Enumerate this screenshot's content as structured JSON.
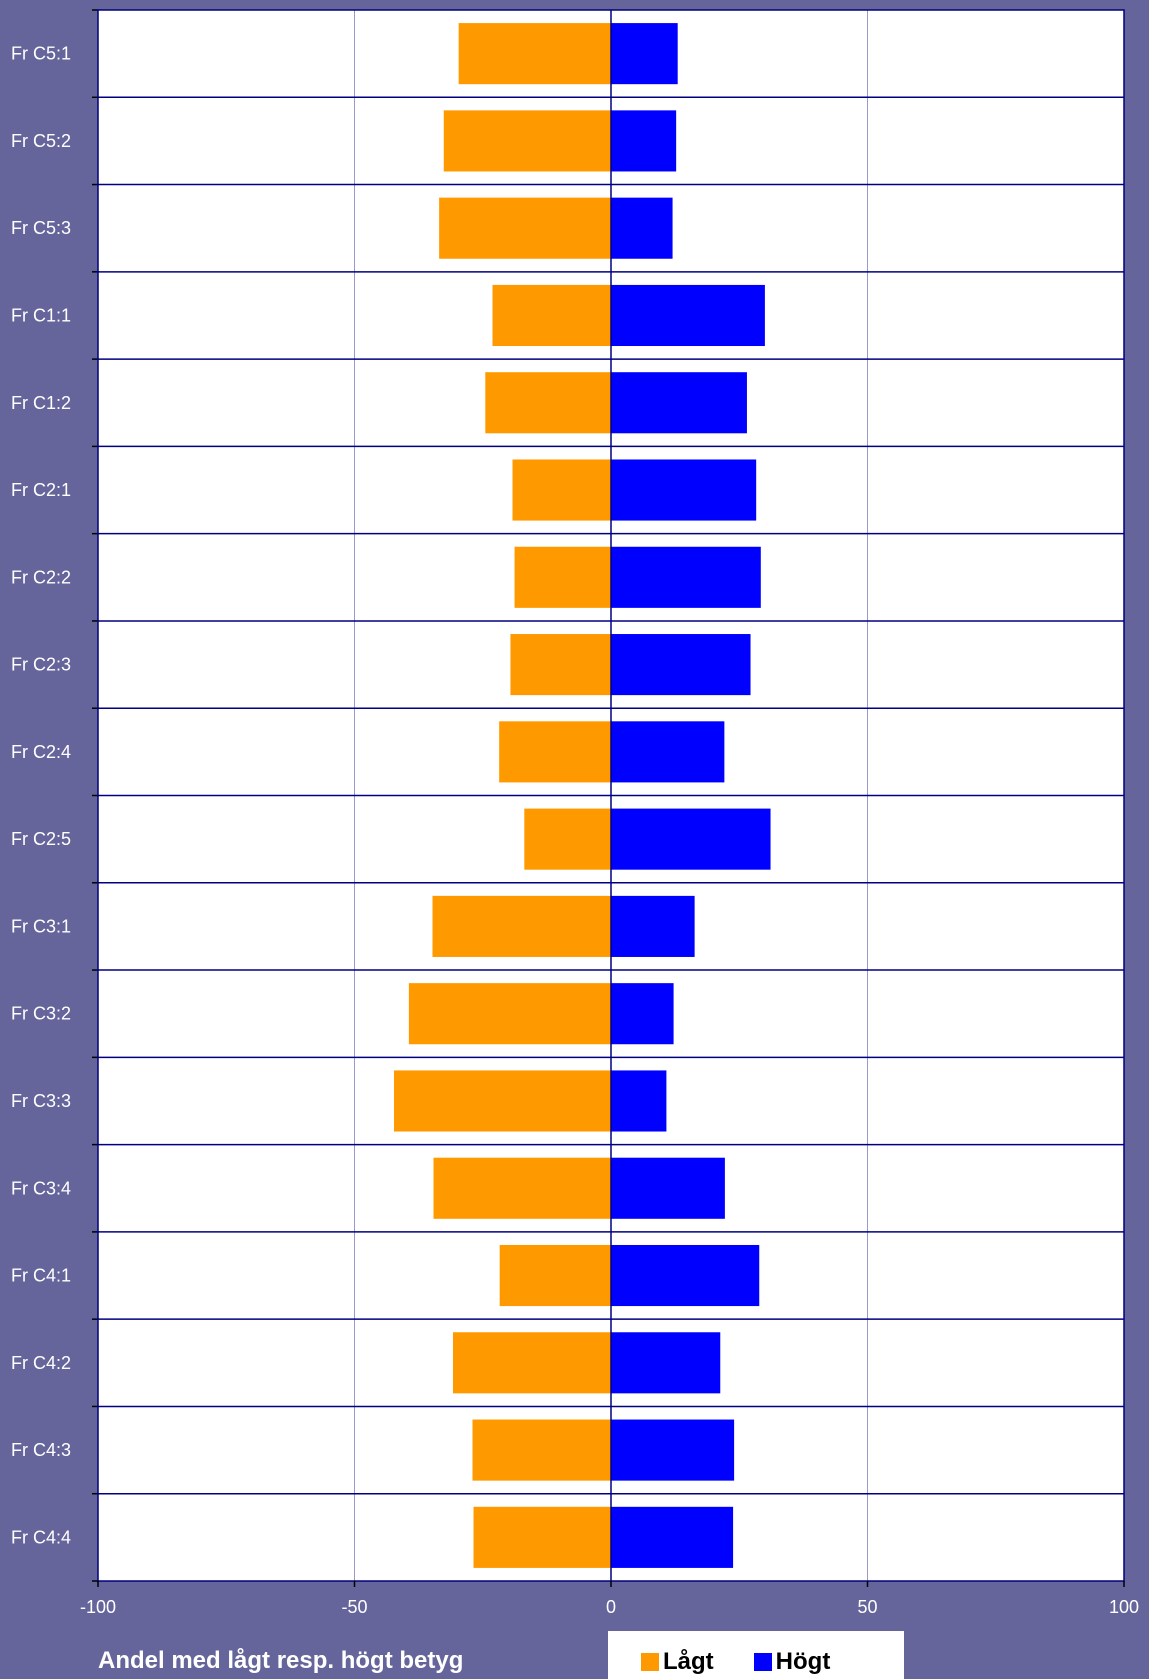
{
  "chart_data": {
    "type": "bar",
    "orientation": "horizontal",
    "stacked_diverging": true,
    "categories": [
      "Fr C5:1",
      "Fr C5:2",
      "Fr C5:3",
      "Fr C1:1",
      "Fr C1:2",
      "Fr C2:1",
      "Fr C2:2",
      "Fr C2:3",
      "Fr C2:4",
      "Fr C2:5",
      "Fr C3:1",
      "Fr C3:2",
      "Fr C3:3",
      "Fr C3:4",
      "Fr C4:1",
      "Fr C4:2",
      "Fr C4:3",
      "Fr C4:4"
    ],
    "series": [
      {
        "name": "Lågt",
        "color": "#ff9900",
        "values": [
          -29.7,
          -32.6,
          -33.5,
          -23.1,
          -24.5,
          -19.2,
          -18.8,
          -19.6,
          -21.8,
          -16.9,
          -34.8,
          -39.4,
          -42.3,
          -34.6,
          -21.7,
          -30.8,
          -27.0,
          -26.8
        ]
      },
      {
        "name": "Högt",
        "color": "#0000ff",
        "values": [
          13.0,
          12.7,
          12.0,
          30.0,
          26.5,
          28.3,
          29.2,
          27.2,
          22.1,
          31.1,
          16.3,
          12.2,
          10.8,
          22.2,
          28.9,
          21.3,
          24.0,
          23.8
        ]
      }
    ],
    "xlim": [
      -100,
      100
    ],
    "xticks": [
      "-100",
      "-50",
      "0",
      "50",
      "100"
    ],
    "xlabel": "Andel med lågt resp. högt betyg",
    "ylabel": "",
    "title": "",
    "grid": true,
    "legend_position": "bottom-right"
  }
}
